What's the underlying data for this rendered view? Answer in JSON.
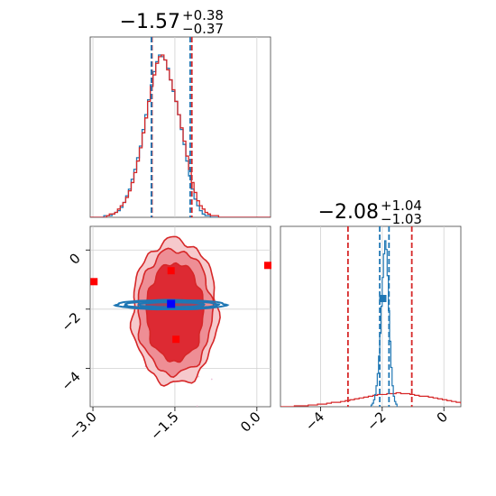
{
  "colors": {
    "red": "#d62728",
    "blue": "#1f77b4",
    "red_fill_outer": "#f6c9cc",
    "red_fill_mid": "#ee8e95",
    "red_fill_inner": "#dd2a33",
    "grid": "#d0d0d0",
    "marker_red": "#ff0000",
    "marker_blue": "#0000ff"
  },
  "chart_data": [
    {
      "panel": "top-left",
      "type": "histogram",
      "title": {
        "median": "−1.57",
        "plus": "+0.38",
        "minus": "−0.37"
      },
      "xlim": [
        -3.05,
        0.25
      ],
      "grid_x": [
        -3.0,
        -1.5,
        0.0
      ],
      "series": [
        {
          "name": "",
          "color": "blue",
          "bin_start": -3.05,
          "bin_width": 0.05,
          "values": [
            0,
            0,
            0,
            0,
            0,
            1,
            1,
            1,
            2,
            3,
            4,
            6,
            9,
            13,
            17,
            23,
            29,
            36,
            43,
            53,
            62,
            71,
            80,
            88,
            94,
            98,
            97,
            95,
            90,
            83,
            76,
            70,
            62,
            53,
            44,
            34,
            25,
            17,
            11,
            7,
            4,
            2,
            1,
            1,
            0,
            0,
            0,
            0,
            0,
            0,
            0,
            0,
            0,
            0,
            0,
            0,
            0,
            0,
            0,
            0,
            0,
            0,
            0,
            0,
            0,
            0
          ]
        },
        {
          "name": "",
          "color": "red",
          "bin_start": -3.05,
          "bin_width": 0.05,
          "values": [
            0,
            0,
            0,
            0,
            0,
            0,
            1,
            2,
            2,
            3,
            5,
            7,
            9,
            12,
            16,
            21,
            27,
            34,
            42,
            51,
            60,
            70,
            79,
            86,
            93,
            97,
            98,
            95,
            89,
            83,
            77,
            70,
            62,
            54,
            46,
            37,
            29,
            21,
            15,
            10,
            7,
            5,
            3,
            2,
            1,
            1,
            1,
            0,
            0,
            0,
            0,
            0,
            0,
            0,
            0,
            0,
            0,
            0,
            0,
            0,
            0,
            0,
            0,
            0,
            0,
            0
          ]
        }
      ],
      "vlines": [
        {
          "color": "red",
          "x": -1.92
        },
        {
          "color": "red",
          "x": -1.19
        },
        {
          "color": "blue",
          "x": -1.93
        },
        {
          "color": "blue",
          "x": -1.22
        }
      ]
    },
    {
      "panel": "bottom-left",
      "type": "scatter",
      "xlim": [
        -3.05,
        0.25
      ],
      "ylim": [
        -5.3,
        0.8
      ],
      "x_ticks": [
        "−3.0",
        "−1.5",
        "0.0"
      ],
      "x_tick_values": [
        -3.0,
        -1.5,
        0.0
      ],
      "y_ticks": [
        "0",
        "−2",
        "−4"
      ],
      "y_tick_values": [
        0,
        -2,
        -4
      ],
      "red_contours": {
        "center": [
          -1.5,
          -2.1
        ],
        "levels": [
          {
            "name": "",
            "rx": 0.78,
            "ry": 2.45,
            "fill": "red_fill_outer"
          },
          {
            "name": "",
            "rx": 0.68,
            "ry": 2.1,
            "fill": "red_fill_mid"
          },
          {
            "name": "",
            "rx": 0.52,
            "ry": 1.65,
            "fill": "red_fill_inner"
          }
        ]
      },
      "blue_contours": {
        "center": [
          -1.57,
          -1.85
        ],
        "levels": [
          {
            "name": "",
            "rx": 1.0,
            "ry": 0.16
          },
          {
            "name": "",
            "rx": 0.85,
            "ry": 0.12
          },
          {
            "name": "",
            "rx": 0.6,
            "ry": 0.08
          }
        ]
      },
      "red_markers": [
        {
          "x": -2.98,
          "y": -1.07
        },
        {
          "x": -1.57,
          "y": -0.7
        },
        {
          "x": 0.2,
          "y": -0.52
        },
        {
          "x": -1.48,
          "y": -3.02
        }
      ],
      "blue_markers": [
        {
          "x": -1.57,
          "y": -1.82
        }
      ]
    },
    {
      "panel": "bottom-right",
      "type": "histogram",
      "title": {
        "median": "−2.08",
        "plus": "+1.04",
        "minus": "−1.03"
      },
      "xlim": [
        -5.3,
        0.55
      ],
      "x_ticks": [
        "−4",
        "−2",
        "0"
      ],
      "x_tick_values": [
        -4,
        -2,
        0
      ],
      "series": [
        {
          "name": "",
          "color": "red",
          "bin_start": -5.3,
          "bin_width": 0.15,
          "values": [
            0,
            0,
            0,
            1,
            1,
            1,
            2,
            2,
            3,
            3,
            4,
            5,
            5,
            6,
            7,
            8,
            9,
            10,
            11,
            12,
            13,
            14,
            14,
            15,
            15,
            16,
            15,
            15,
            14,
            13,
            12,
            12,
            11,
            10,
            9,
            8,
            7,
            6,
            5,
            4,
            3
          ]
        },
        {
          "name": "",
          "color": "blue",
          "bin_start": -2.36,
          "bin_width": 0.04,
          "values": [
            2,
            4,
            8,
            14,
            24,
            38,
            58,
            84,
            115,
            148,
            175,
            190,
            180,
            150,
            110,
            75,
            45,
            24,
            12,
            6,
            3
          ]
        }
      ],
      "vlines": [
        {
          "color": "red",
          "x": -3.11
        },
        {
          "color": "red",
          "x": -1.04
        },
        {
          "color": "blue",
          "x": -2.08
        },
        {
          "color": "blue",
          "x": -1.78
        }
      ],
      "markers": [
        {
          "color": "blue",
          "x": -1.98,
          "y_frac": 0.6
        }
      ]
    }
  ]
}
